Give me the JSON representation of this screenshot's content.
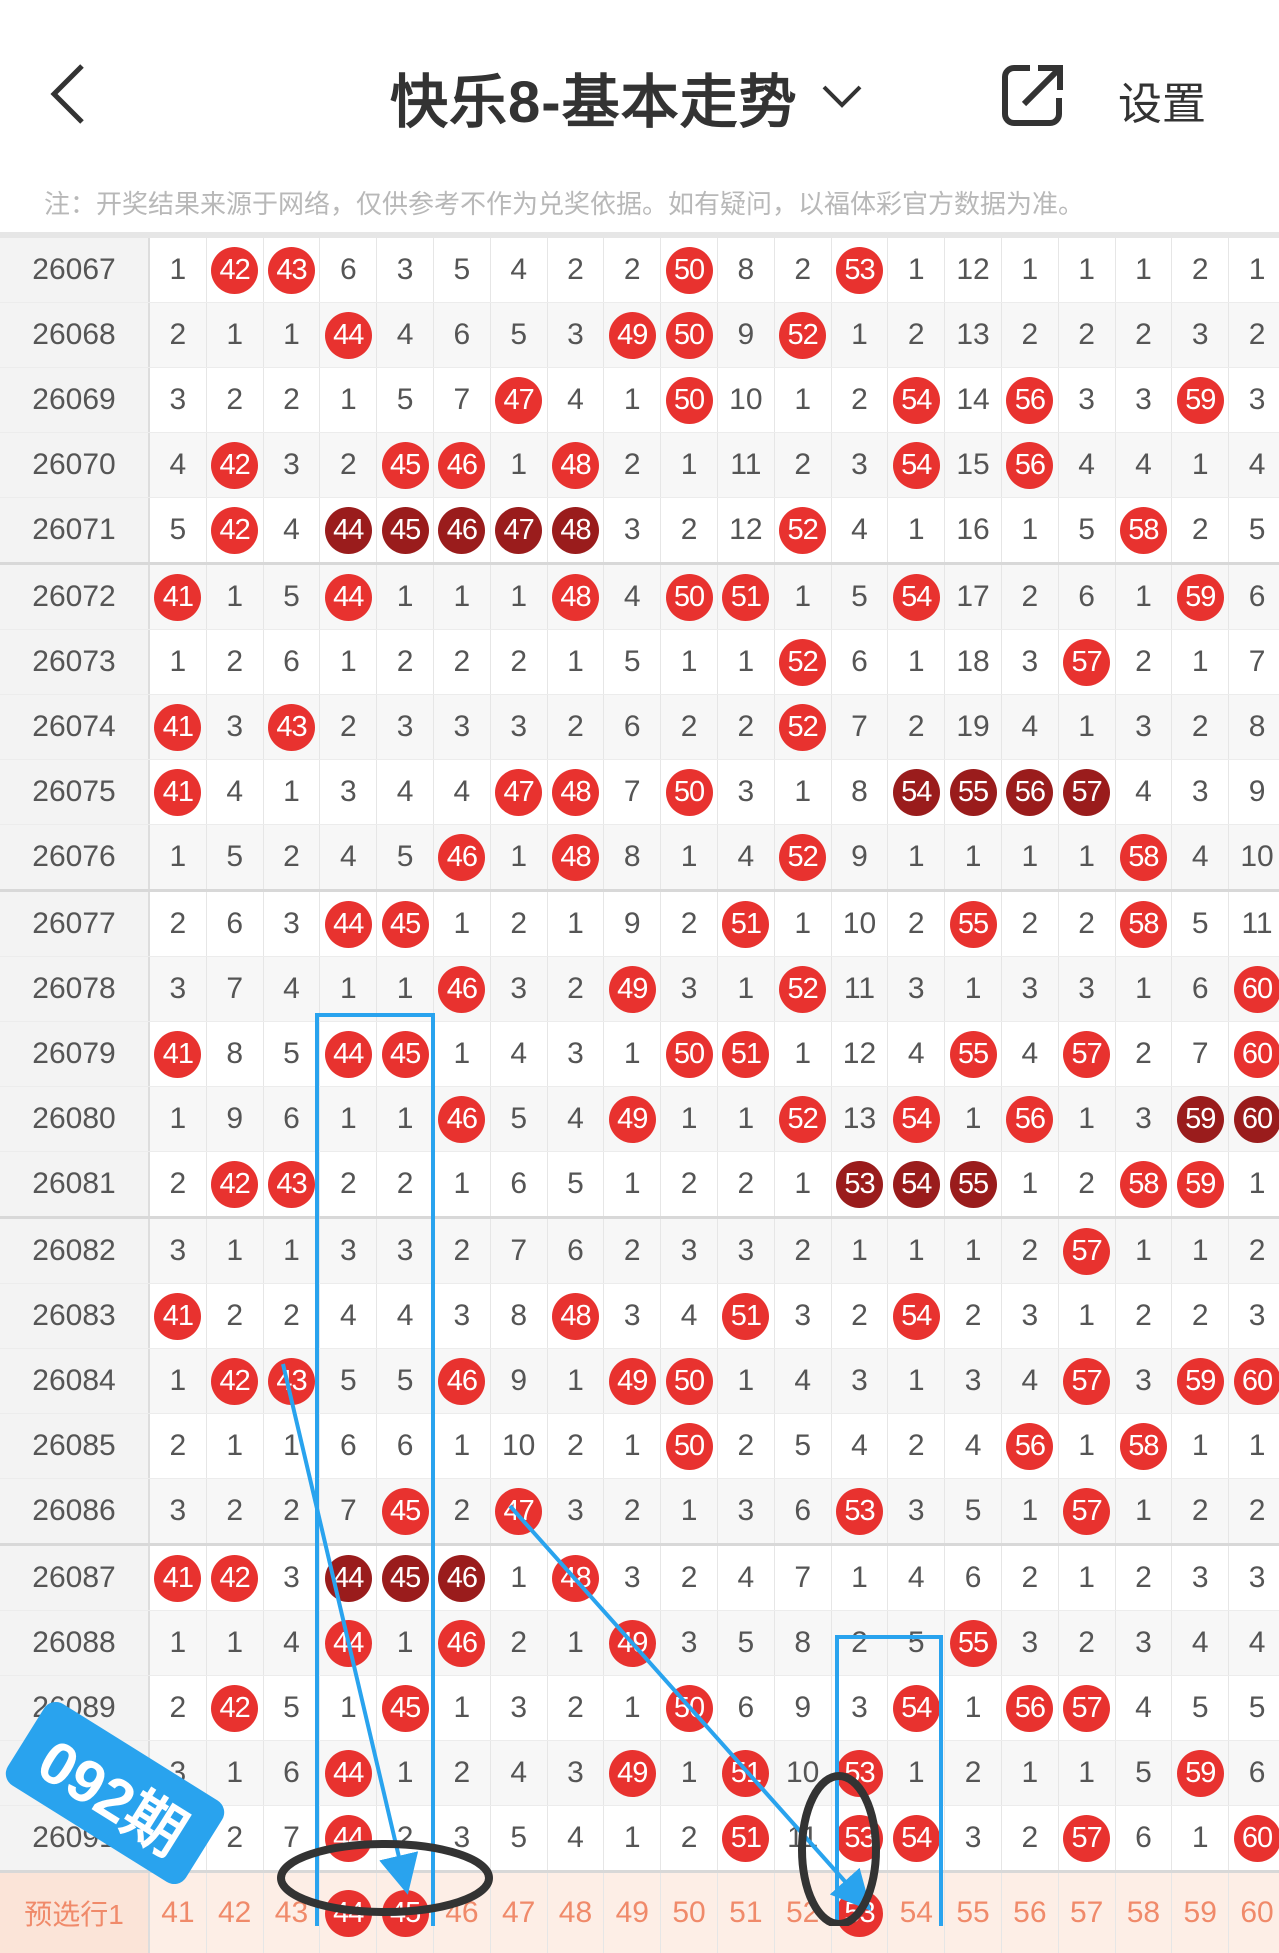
{
  "header": {
    "title": "快乐8-基本走势",
    "settings_label": "设置"
  },
  "note": "注：开奖结果来源于网络，仅供参考不作为兑奖依据。如有疑问，以福体彩官方数据为准。",
  "colors": {
    "hit": "#e8322f",
    "streak": "#9a1c1c",
    "annotation": "#29a3ee"
  },
  "columns": [
    "41",
    "42",
    "43",
    "44",
    "45",
    "46",
    "47",
    "48",
    "49",
    "50",
    "51",
    "52",
    "53",
    "54",
    "55",
    "56",
    "57",
    "58",
    "59",
    "60"
  ],
  "legend_marks": {
    "n": "miss count",
    "r": "drawn number",
    "d": "consecutive drawn run"
  },
  "rows": [
    {
      "issue": "26067",
      "cells": [
        "1",
        "42",
        "43",
        "6",
        "3",
        "5",
        "4",
        "2",
        "2",
        "50",
        "8",
        "2",
        "53",
        "1",
        "12",
        "1",
        "1",
        "1",
        "2",
        "1"
      ],
      "marks": "nrrnnnnnnrnnrnnnnnnn"
    },
    {
      "issue": "26068",
      "cells": [
        "2",
        "1",
        "1",
        "44",
        "4",
        "6",
        "5",
        "3",
        "49",
        "50",
        "9",
        "52",
        "1",
        "2",
        "13",
        "2",
        "2",
        "2",
        "3",
        "2"
      ],
      "marks": "nnnrnnnnrrnrnnnnnnnn"
    },
    {
      "issue": "26069",
      "cells": [
        "3",
        "2",
        "2",
        "1",
        "5",
        "7",
        "47",
        "4",
        "1",
        "50",
        "10",
        "1",
        "2",
        "54",
        "14",
        "56",
        "3",
        "3",
        "59",
        "3"
      ],
      "marks": "nnnnnnrnnrnnnrnrnnrn"
    },
    {
      "issue": "26070",
      "cells": [
        "4",
        "42",
        "3",
        "2",
        "45",
        "46",
        "1",
        "48",
        "2",
        "1",
        "11",
        "2",
        "3",
        "54",
        "15",
        "56",
        "4",
        "4",
        "1",
        "4"
      ],
      "marks": "nrnnrrnrnnnnnrnrnnnn"
    },
    {
      "issue": "26071",
      "cells": [
        "5",
        "42",
        "4",
        "44",
        "45",
        "46",
        "47",
        "48",
        "3",
        "2",
        "12",
        "52",
        "4",
        "1",
        "16",
        "1",
        "5",
        "58",
        "2",
        "5"
      ],
      "marks": "nrndddddnnnrnnnnnrnn"
    },
    {
      "issue": "26072",
      "cells": [
        "41",
        "1",
        "5",
        "44",
        "1",
        "1",
        "1",
        "48",
        "4",
        "50",
        "51",
        "1",
        "5",
        "54",
        "17",
        "2",
        "6",
        "1",
        "59",
        "6"
      ],
      "marks": "rnnrnnnrnrrnnrnnnnrn"
    },
    {
      "issue": "26073",
      "cells": [
        "1",
        "2",
        "6",
        "1",
        "2",
        "2",
        "2",
        "1",
        "5",
        "1",
        "1",
        "52",
        "6",
        "1",
        "18",
        "3",
        "57",
        "2",
        "1",
        "7"
      ],
      "marks": "nnnnnnnnnnnrnnnnrnnn"
    },
    {
      "issue": "26074",
      "cells": [
        "41",
        "3",
        "43",
        "2",
        "3",
        "3",
        "3",
        "2",
        "6",
        "2",
        "2",
        "52",
        "7",
        "2",
        "19",
        "4",
        "1",
        "3",
        "2",
        "8"
      ],
      "marks": "rnrnnnnnnnnrnnnnnnnn"
    },
    {
      "issue": "26075",
      "cells": [
        "41",
        "4",
        "1",
        "3",
        "4",
        "4",
        "47",
        "48",
        "7",
        "50",
        "3",
        "1",
        "8",
        "54",
        "55",
        "56",
        "57",
        "4",
        "3",
        "9"
      ],
      "marks": "rnnnnnrrnrnnnddddnnn"
    },
    {
      "issue": "26076",
      "cells": [
        "1",
        "5",
        "2",
        "4",
        "5",
        "46",
        "1",
        "48",
        "8",
        "1",
        "4",
        "52",
        "9",
        "1",
        "1",
        "1",
        "1",
        "58",
        "4",
        "10"
      ],
      "marks": "nnnnnrnrnnnrnnnnnrnn"
    },
    {
      "issue": "26077",
      "cells": [
        "2",
        "6",
        "3",
        "44",
        "45",
        "1",
        "2",
        "1",
        "9",
        "2",
        "51",
        "1",
        "10",
        "2",
        "55",
        "2",
        "2",
        "58",
        "5",
        "11"
      ],
      "marks": "nnnrrnnnnnrnnnrnnrnn"
    },
    {
      "issue": "26078",
      "cells": [
        "3",
        "7",
        "4",
        "1",
        "1",
        "46",
        "3",
        "2",
        "49",
        "3",
        "1",
        "52",
        "11",
        "3",
        "1",
        "3",
        "3",
        "1",
        "6",
        "60"
      ],
      "marks": "nnnnnrnnrnnrnnnnnnnr"
    },
    {
      "issue": "26079",
      "cells": [
        "41",
        "8",
        "5",
        "44",
        "45",
        "1",
        "4",
        "3",
        "1",
        "50",
        "51",
        "1",
        "12",
        "4",
        "55",
        "4",
        "57",
        "2",
        "7",
        "60"
      ],
      "marks": "rnnrrnnnnrrnnnrnrnnr"
    },
    {
      "issue": "26080",
      "cells": [
        "1",
        "9",
        "6",
        "1",
        "1",
        "46",
        "5",
        "4",
        "49",
        "1",
        "1",
        "52",
        "13",
        "54",
        "1",
        "56",
        "1",
        "3",
        "59",
        "60"
      ],
      "marks": "nnnnnrnnrnnrnrnrnndd"
    },
    {
      "issue": "26081",
      "cells": [
        "2",
        "42",
        "43",
        "2",
        "2",
        "1",
        "6",
        "5",
        "1",
        "2",
        "2",
        "1",
        "53",
        "54",
        "55",
        "1",
        "2",
        "58",
        "59",
        "1"
      ],
      "marks": "nrrnnnnnnnnndddnnrrn"
    },
    {
      "issue": "26082",
      "cells": [
        "3",
        "1",
        "1",
        "3",
        "3",
        "2",
        "7",
        "6",
        "2",
        "3",
        "3",
        "2",
        "1",
        "1",
        "1",
        "2",
        "57",
        "1",
        "1",
        "2"
      ],
      "marks": "nnnnnnnnnnnnnnnnrnnn"
    },
    {
      "issue": "26083",
      "cells": [
        "41",
        "2",
        "2",
        "4",
        "4",
        "3",
        "8",
        "48",
        "3",
        "4",
        "51",
        "3",
        "2",
        "54",
        "2",
        "3",
        "1",
        "2",
        "2",
        "3"
      ],
      "marks": "rnnnnnnrnnrnnrnnnnnn"
    },
    {
      "issue": "26084",
      "cells": [
        "1",
        "42",
        "43",
        "5",
        "5",
        "46",
        "9",
        "1",
        "49",
        "50",
        "1",
        "4",
        "3",
        "1",
        "3",
        "4",
        "57",
        "3",
        "59",
        "60"
      ],
      "marks": "nrrnnrnnrrnnnnnnrnrr"
    },
    {
      "issue": "26085",
      "cells": [
        "2",
        "1",
        "1",
        "6",
        "6",
        "1",
        "10",
        "2",
        "1",
        "50",
        "2",
        "5",
        "4",
        "2",
        "4",
        "56",
        "1",
        "58",
        "1",
        "1"
      ],
      "marks": "nnnnnnnnnrnnnnnrnrnn"
    },
    {
      "issue": "26086",
      "cells": [
        "3",
        "2",
        "2",
        "7",
        "45",
        "2",
        "47",
        "3",
        "2",
        "1",
        "3",
        "6",
        "53",
        "3",
        "5",
        "1",
        "57",
        "1",
        "2",
        "2"
      ],
      "marks": "nnnnrnrnnnnnrnnnrnnn"
    },
    {
      "issue": "26087",
      "cells": [
        "41",
        "42",
        "3",
        "44",
        "45",
        "46",
        "1",
        "48",
        "3",
        "2",
        "4",
        "7",
        "1",
        "4",
        "6",
        "2",
        "1",
        "2",
        "3",
        "3"
      ],
      "marks": "rrndddnrnnnnnnnnnnnn"
    },
    {
      "issue": "26088",
      "cells": [
        "1",
        "1",
        "4",
        "44",
        "1",
        "46",
        "2",
        "1",
        "49",
        "3",
        "5",
        "8",
        "2",
        "5",
        "55",
        "3",
        "2",
        "3",
        "4",
        "4"
      ],
      "marks": "nnnrnrnnrnnnnnrnnnnn"
    },
    {
      "issue": "26089",
      "cells": [
        "2",
        "42",
        "5",
        "1",
        "45",
        "1",
        "3",
        "2",
        "1",
        "50",
        "6",
        "9",
        "3",
        "54",
        "1",
        "56",
        "57",
        "4",
        "5",
        "5"
      ],
      "marks": "nrnnrnnnnrnnnrnrrnnn"
    },
    {
      "issue": "26090",
      "cells": [
        "3",
        "1",
        "6",
        "44",
        "1",
        "2",
        "4",
        "3",
        "49",
        "1",
        "51",
        "10",
        "53",
        "1",
        "2",
        "1",
        "1",
        "5",
        "59",
        "6"
      ],
      "marks": "nnnrnnnnrnrnrnnnnnrn"
    },
    {
      "issue": "26091",
      "cells": [
        "4",
        "2",
        "7",
        "44",
        "2",
        "3",
        "5",
        "4",
        "1",
        "2",
        "51",
        "11",
        "53",
        "54",
        "3",
        "2",
        "57",
        "6",
        "1",
        "60"
      ],
      "marks": "nnnrnnnnnnrnrrnnrnnr"
    }
  ],
  "preselect": {
    "label": "预选行1",
    "selected": [
      "44",
      "45",
      "53"
    ]
  },
  "annotation_badge": "092期"
}
